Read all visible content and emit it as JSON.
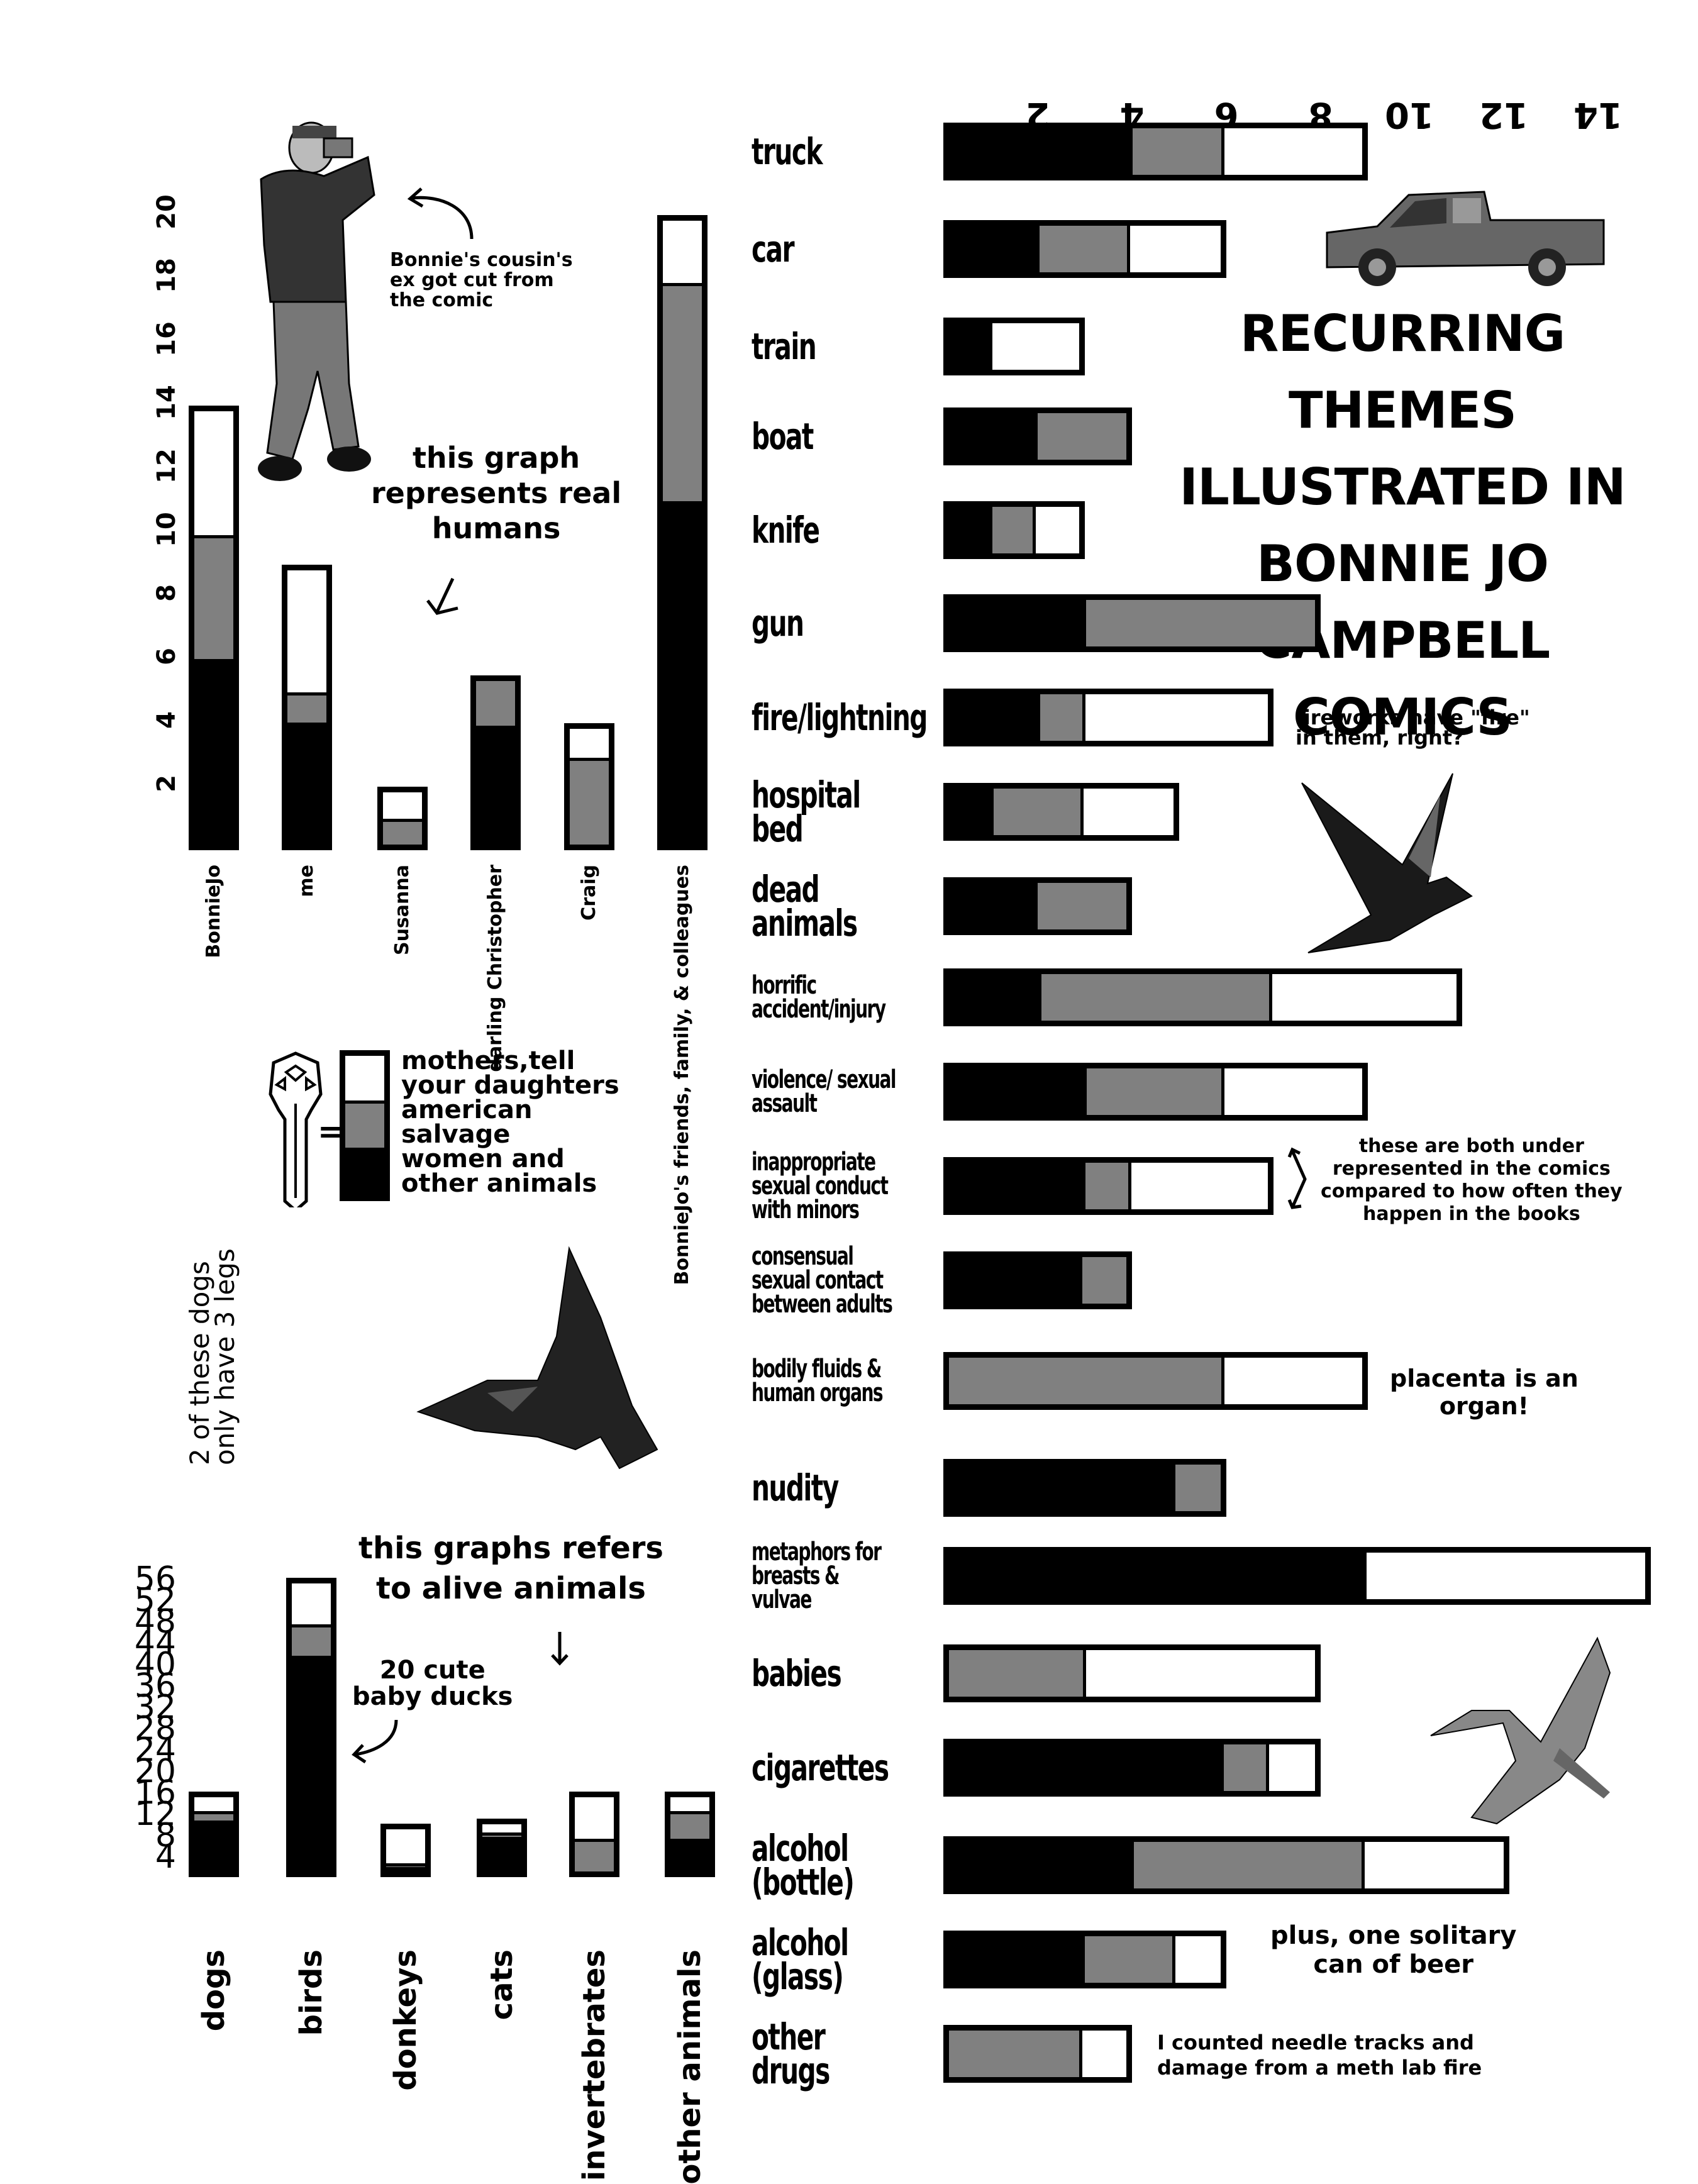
{
  "title": "RECURRING THEMES\nILLUSTRATED IN\nBONNIE JO CAMPBELL\nCOMICS",
  "legend": {
    "items": [
      {
        "color": "#ffffff",
        "label": "mothers, tell your daughters"
      },
      {
        "color": "#808080",
        "label": "american salvage"
      },
      {
        "color": "#000000",
        "label": "women and other animals"
      }
    ],
    "text_lines": [
      "mothers,tell",
      "your daughters",
      "american",
      "salvage",
      "women and",
      "other animals"
    ],
    "key_icon": "key-icon"
  },
  "annotations": {
    "cousin": "Bonnie's cousin's\nex got cut from\nthe comic",
    "humans": "this graph\nrepresents real\nhumans",
    "fireworks": "fireworks have \"fire\"\nin them, right?",
    "under_represented": "these are both under\nrepresented in the comics\ncompared to how often they\nhappen in the books",
    "placenta": "placenta is an\norgan!",
    "beer": "plus, one solitary\ncan of beer",
    "needle": "I counted needle tracks and\ndamage from a meth lab fire",
    "dogs_legs": "2 of these dogs\nonly have 3 legs",
    "animals": "this graphs refers\nto alive animals",
    "ducks": "20 cute\nbaby ducks"
  },
  "chart_data": [
    {
      "type": "bar",
      "orientation": "horizontal",
      "stacked": true,
      "title": "RECURRING THEMES ILLUSTRATED IN BONNIE JO CAMPBELL COMICS",
      "xlabel": "",
      "ylabel": "",
      "xlim": [
        0,
        15
      ],
      "xticks": [
        2,
        4,
        6,
        8,
        10,
        12,
        14
      ],
      "legend_position": "left-middle",
      "categories": [
        "truck",
        "car",
        "train",
        "boat",
        "knife",
        "gun",
        "fire/lightning",
        "hospital bed",
        "dead animals",
        "horrific accident/injury",
        "violence/ sexual assault",
        "inappropriate sexual conduct with minors",
        "consensual sexual contact between adults",
        "bodily fluids & human organs",
        "nudity",
        "metaphors for breasts & vulvae",
        "babies",
        "cigarettes",
        "alcohol (bottle)",
        "alcohol (glass)",
        "other drugs"
      ],
      "series": [
        {
          "name": "women and other animals",
          "color": "#000000",
          "values": [
            4,
            2,
            1,
            2,
            1,
            3,
            2,
            1,
            2,
            2,
            3,
            3,
            3,
            0,
            5,
            9,
            0,
            6,
            4,
            3,
            0
          ]
        },
        {
          "name": "american salvage",
          "color": "#808080",
          "values": [
            2,
            2,
            0,
            2,
            1,
            5,
            1,
            2,
            2,
            5,
            3,
            1,
            1,
            6,
            1,
            0,
            3,
            1,
            5,
            2,
            3
          ]
        },
        {
          "name": "mothers, tell your daughters",
          "color": "#ffffff",
          "values": [
            3,
            2,
            2,
            0,
            1,
            0,
            4,
            2,
            0,
            4,
            3,
            3,
            0,
            3,
            0,
            6,
            5,
            1,
            3,
            1,
            1
          ]
        }
      ]
    },
    {
      "type": "bar",
      "orientation": "vertical",
      "stacked": true,
      "title": "this graph represents real humans",
      "ylim": [
        0,
        20
      ],
      "yticks": [
        2,
        4,
        6,
        8,
        10,
        12,
        14,
        16,
        18,
        20
      ],
      "categories": [
        "BonnieJo",
        "me",
        "Susanna",
        "darling Christopher",
        "Craig",
        "BonnieJo's friends, family, & colleagues"
      ],
      "series": [
        {
          "name": "women and other animals",
          "color": "#000000",
          "values": [
            6,
            4,
            0,
            4,
            0,
            11
          ]
        },
        {
          "name": "american salvage",
          "color": "#808080",
          "values": [
            4,
            1,
            1,
            1.5,
            3,
            7
          ]
        },
        {
          "name": "mothers, tell your daughters",
          "color": "#ffffff",
          "values": [
            4,
            4,
            1,
            0,
            1,
            2
          ]
        }
      ]
    },
    {
      "type": "bar",
      "orientation": "vertical",
      "stacked": true,
      "title": "this graphs refers to alive animals",
      "ylim": [
        0,
        56
      ],
      "yticks": [
        4,
        8,
        12,
        16,
        20,
        24,
        28,
        32,
        36,
        40,
        44,
        48,
        52,
        56
      ],
      "categories": [
        "dogs",
        "birds",
        "donkeys",
        "cats",
        "invertebrates",
        "other animals"
      ],
      "series": [
        {
          "name": "women and other animals",
          "color": "#000000",
          "values": [
            11,
            42,
            1,
            8,
            0,
            7
          ]
        },
        {
          "name": "american salvage",
          "color": "#808080",
          "values": [
            2,
            6,
            1,
            1,
            7,
            6
          ]
        },
        {
          "name": "mothers, tell your daughters",
          "color": "#ffffff",
          "values": [
            3,
            8,
            8,
            2,
            9,
            3
          ]
        }
      ]
    }
  ]
}
